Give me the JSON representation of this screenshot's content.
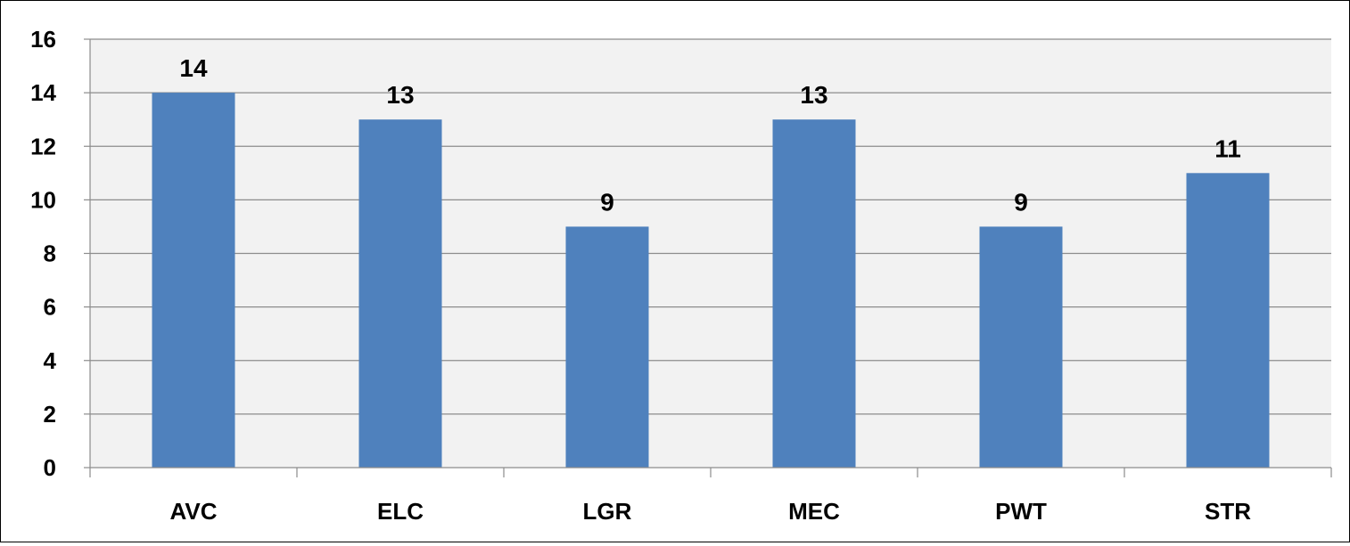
{
  "chart_data": {
    "type": "bar",
    "title": "",
    "xlabel": "",
    "ylabel": "",
    "categories": [
      "AVC",
      "ELC",
      "LGR",
      "MEC",
      "PWT",
      "STR"
    ],
    "values": [
      14,
      13,
      9,
      13,
      9,
      11
    ],
    "data_labels": [
      "14",
      "13",
      "9",
      "13",
      "9",
      "11"
    ],
    "ylim": [
      0,
      16
    ],
    "yticks": [
      0,
      2,
      4,
      6,
      8,
      10,
      12,
      14,
      16
    ],
    "grid": true,
    "legend": "none",
    "colors": {
      "bar": "#4f81bd",
      "plot_background": "#f2f2f2",
      "gridline": "#8c8c8c",
      "axis": "#8c8c8c"
    }
  }
}
